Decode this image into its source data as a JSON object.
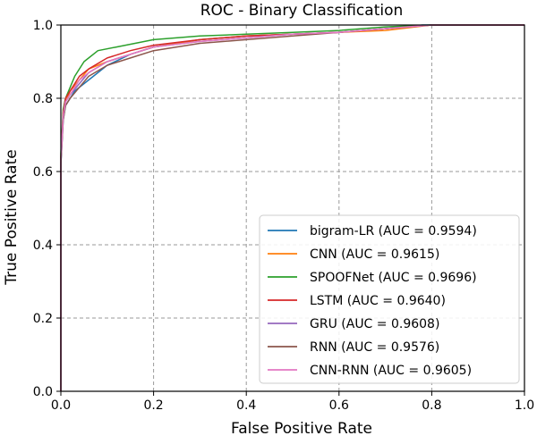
{
  "chart_data": {
    "type": "line",
    "title": "ROC - Binary Classification",
    "xlabel": "False Positive Rate",
    "ylabel": "True Positive Rate",
    "xlim": [
      0.0,
      1.0
    ],
    "ylim": [
      0.0,
      1.0
    ],
    "xticks": [
      "0.0",
      "0.2",
      "0.4",
      "0.6",
      "0.8",
      "1.0"
    ],
    "yticks": [
      "0.0",
      "0.2",
      "0.4",
      "0.6",
      "0.8",
      "1.0"
    ],
    "grid": true,
    "legend_position": "lower-right",
    "series": [
      {
        "name": "bigram-LR (AUC = 0.9594)",
        "color": "#1f77b4",
        "points": [
          [
            0,
            0
          ],
          [
            0,
            0.62
          ],
          [
            0.005,
            0.74
          ],
          [
            0.01,
            0.78
          ],
          [
            0.02,
            0.8
          ],
          [
            0.03,
            0.82
          ],
          [
            0.05,
            0.84
          ],
          [
            0.07,
            0.86
          ],
          [
            0.1,
            0.89
          ],
          [
            0.15,
            0.92
          ],
          [
            0.2,
            0.94
          ],
          [
            0.3,
            0.96
          ],
          [
            0.4,
            0.97
          ],
          [
            0.5,
            0.975
          ],
          [
            0.6,
            0.98
          ],
          [
            0.7,
            0.99
          ],
          [
            0.78,
            1.0
          ],
          [
            1.0,
            1.0
          ]
        ]
      },
      {
        "name": "CNN (AUC = 0.9615)",
        "color": "#ff7f0e",
        "points": [
          [
            0,
            0
          ],
          [
            0,
            0.63
          ],
          [
            0.005,
            0.76
          ],
          [
            0.01,
            0.79
          ],
          [
            0.02,
            0.82
          ],
          [
            0.04,
            0.85
          ],
          [
            0.06,
            0.88
          ],
          [
            0.1,
            0.9
          ],
          [
            0.15,
            0.92
          ],
          [
            0.2,
            0.94
          ],
          [
            0.3,
            0.96
          ],
          [
            0.4,
            0.97
          ],
          [
            0.5,
            0.975
          ],
          [
            0.6,
            0.98
          ],
          [
            0.7,
            0.985
          ],
          [
            0.8,
            1.0
          ],
          [
            1.0,
            1.0
          ]
        ]
      },
      {
        "name": "SPOOFNet (AUC = 0.9696)",
        "color": "#2ca02c",
        "points": [
          [
            0,
            0
          ],
          [
            0,
            0.65
          ],
          [
            0.005,
            0.77
          ],
          [
            0.01,
            0.8
          ],
          [
            0.02,
            0.83
          ],
          [
            0.03,
            0.86
          ],
          [
            0.05,
            0.9
          ],
          [
            0.08,
            0.93
          ],
          [
            0.12,
            0.94
          ],
          [
            0.2,
            0.96
          ],
          [
            0.3,
            0.97
          ],
          [
            0.4,
            0.975
          ],
          [
            0.5,
            0.98
          ],
          [
            0.6,
            0.985
          ],
          [
            0.7,
            0.995
          ],
          [
            0.8,
            1.0
          ],
          [
            1.0,
            1.0
          ]
        ]
      },
      {
        "name": "LSTM (AUC = 0.9640)",
        "color": "#d62728",
        "points": [
          [
            0,
            0
          ],
          [
            0,
            0.64
          ],
          [
            0.005,
            0.76
          ],
          [
            0.01,
            0.8
          ],
          [
            0.02,
            0.82
          ],
          [
            0.04,
            0.86
          ],
          [
            0.06,
            0.88
          ],
          [
            0.1,
            0.91
          ],
          [
            0.15,
            0.93
          ],
          [
            0.2,
            0.945
          ],
          [
            0.3,
            0.96
          ],
          [
            0.4,
            0.97
          ],
          [
            0.5,
            0.975
          ],
          [
            0.6,
            0.98
          ],
          [
            0.7,
            0.99
          ],
          [
            0.8,
            1.0
          ],
          [
            1.0,
            1.0
          ]
        ]
      },
      {
        "name": "GRU (AUC = 0.9608)",
        "color": "#9467bd",
        "points": [
          [
            0,
            0
          ],
          [
            0,
            0.63
          ],
          [
            0.005,
            0.75
          ],
          [
            0.01,
            0.79
          ],
          [
            0.02,
            0.81
          ],
          [
            0.04,
            0.84
          ],
          [
            0.06,
            0.87
          ],
          [
            0.1,
            0.9
          ],
          [
            0.15,
            0.92
          ],
          [
            0.2,
            0.94
          ],
          [
            0.3,
            0.955
          ],
          [
            0.4,
            0.965
          ],
          [
            0.5,
            0.975
          ],
          [
            0.6,
            0.98
          ],
          [
            0.7,
            0.99
          ],
          [
            0.8,
            1.0
          ],
          [
            1.0,
            1.0
          ]
        ]
      },
      {
        "name": "RNN (AUC = 0.9576)",
        "color": "#8c564b",
        "points": [
          [
            0,
            0
          ],
          [
            0,
            0.62
          ],
          [
            0.005,
            0.74
          ],
          [
            0.01,
            0.78
          ],
          [
            0.02,
            0.8
          ],
          [
            0.04,
            0.83
          ],
          [
            0.06,
            0.86
          ],
          [
            0.1,
            0.89
          ],
          [
            0.15,
            0.91
          ],
          [
            0.2,
            0.93
          ],
          [
            0.3,
            0.95
          ],
          [
            0.4,
            0.96
          ],
          [
            0.5,
            0.97
          ],
          [
            0.6,
            0.98
          ],
          [
            0.7,
            0.99
          ],
          [
            0.8,
            1.0
          ],
          [
            1.0,
            1.0
          ]
        ]
      },
      {
        "name": "CNN-RNN (AUC = 0.9605)",
        "color": "#e377c2",
        "points": [
          [
            0,
            0
          ],
          [
            0,
            0.63
          ],
          [
            0.005,
            0.75
          ],
          [
            0.01,
            0.79
          ],
          [
            0.02,
            0.81
          ],
          [
            0.04,
            0.85
          ],
          [
            0.06,
            0.87
          ],
          [
            0.1,
            0.9
          ],
          [
            0.15,
            0.92
          ],
          [
            0.2,
            0.94
          ],
          [
            0.3,
            0.955
          ],
          [
            0.4,
            0.965
          ],
          [
            0.5,
            0.975
          ],
          [
            0.6,
            0.98
          ],
          [
            0.7,
            0.99
          ],
          [
            0.8,
            1.0
          ],
          [
            1.0,
            1.0
          ]
        ]
      }
    ]
  }
}
